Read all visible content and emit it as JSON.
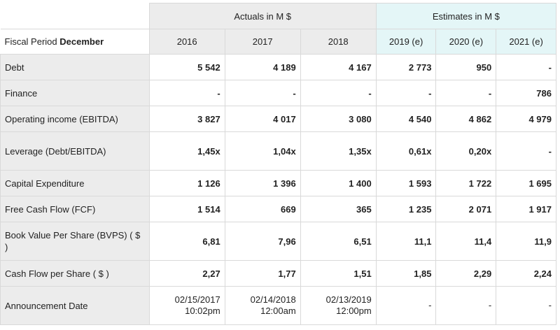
{
  "header": {
    "actuals_label": "Actuals in M $",
    "estimates_label": "Estimates in M $",
    "fiscal_period_prefix": "Fiscal Period",
    "fiscal_period_month": "December",
    "years": [
      "2016",
      "2017",
      "2018",
      "2019 (e)",
      "2020 (e)",
      "2021 (e)"
    ]
  },
  "rows": [
    {
      "label": "Debt",
      "values": [
        "5 542",
        "4 189",
        "4 167",
        "2 773",
        "950",
        "-"
      ]
    },
    {
      "label": "Finance",
      "values": [
        "-",
        "-",
        "-",
        "-",
        "-",
        "786"
      ]
    },
    {
      "label": "Operating income (EBITDA)",
      "values": [
        "3 827",
        "4 017",
        "3 080",
        "4 540",
        "4 862",
        "4 979"
      ]
    },
    {
      "label": "Leverage (Debt/EBITDA)",
      "values": [
        "1,45x",
        "1,04x",
        "1,35x",
        "0,61x",
        "0,20x",
        "-"
      ]
    },
    {
      "label": "Capital Expenditure",
      "values": [
        "1 126",
        "1 396",
        "1 400",
        "1 593",
        "1 722",
        "1 695"
      ]
    },
    {
      "label": "Free Cash Flow (FCF)",
      "values": [
        "1 514",
        "669",
        "365",
        "1 235",
        "2 071",
        "1 917"
      ]
    },
    {
      "label": "Book Value Per Share (BVPS) ( $ )",
      "values": [
        "6,81",
        "7,96",
        "6,51",
        "11,1",
        "11,4",
        "11,9"
      ]
    },
    {
      "label": "Cash Flow per Share ( $ )",
      "values": [
        "2,27",
        "1,77",
        "1,51",
        "1,85",
        "2,29",
        "2,24"
      ]
    }
  ],
  "announcement": {
    "label": "Announcement Date",
    "values": [
      {
        "date": "02/15/2017",
        "time": "10:02pm"
      },
      {
        "date": "02/14/2018",
        "time": "12:00am"
      },
      {
        "date": "02/13/2019",
        "time": "12:00pm"
      },
      {
        "date": "-",
        "time": ""
      },
      {
        "date": "-",
        "time": ""
      },
      {
        "date": "-",
        "time": ""
      }
    ]
  }
}
